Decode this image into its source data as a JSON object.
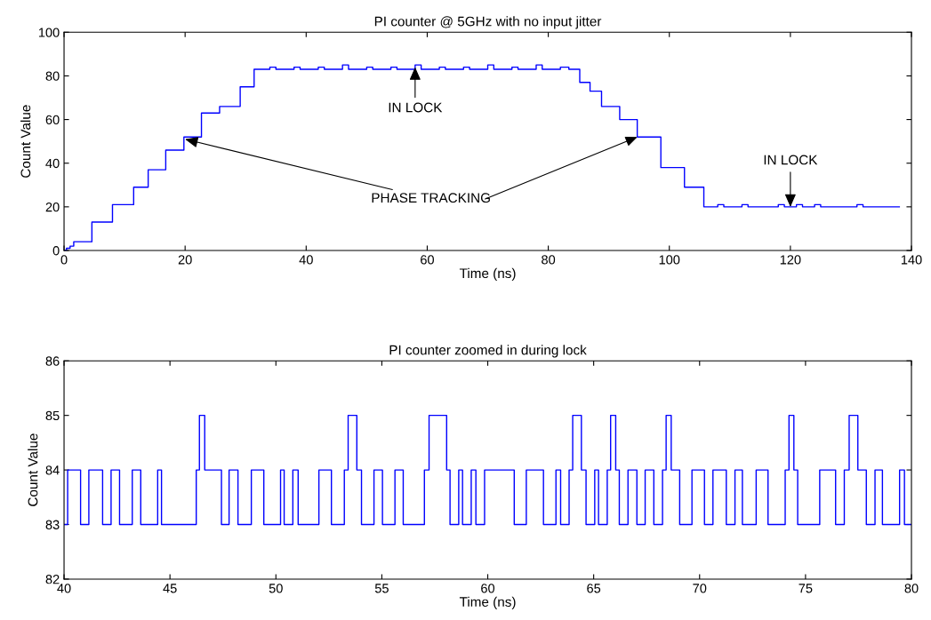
{
  "chart_data": [
    {
      "type": "step",
      "title": "PI counter @ 5GHz with no input jitter",
      "xlabel": "Time (ns)",
      "ylabel": "Count Value",
      "xlim": [
        0,
        140
      ],
      "xticks": [
        0,
        20,
        40,
        60,
        80,
        100,
        120,
        140
      ],
      "ylim": [
        0,
        100
      ],
      "yticks": [
        0,
        20,
        40,
        60,
        80,
        100
      ],
      "grid": false,
      "legend": false,
      "series": [
        {
          "color": "#0000ff",
          "x": [
            0,
            0.4,
            1,
            1.6,
            4.6,
            8,
            11.5,
            13.9,
            16.8,
            19.8,
            22.7,
            25.7,
            29.1,
            31.4,
            34,
            35,
            38,
            39,
            42,
            43,
            46,
            47,
            50,
            51,
            54,
            55,
            58,
            59,
            62,
            63,
            66,
            67,
            70,
            71,
            74,
            75,
            78,
            79,
            82,
            83.4,
            85.2,
            86.9,
            88.8,
            91.8,
            94.7,
            98.6,
            102.5,
            105.7,
            108,
            109,
            112,
            113,
            118,
            119,
            121,
            122,
            124,
            125,
            131,
            132,
            138
          ],
          "values": [
            0,
            1,
            2,
            4,
            13,
            21,
            29,
            37,
            46,
            52,
            63,
            66,
            75,
            83,
            84,
            83,
            84,
            83,
            84,
            83,
            85,
            83,
            84,
            83,
            84,
            83,
            85,
            83,
            84,
            83,
            84,
            83,
            85,
            83,
            84,
            83,
            85,
            83,
            84,
            83,
            77,
            73,
            66,
            60,
            52,
            38,
            29,
            20,
            21,
            20,
            21,
            20,
            21,
            20,
            21,
            20,
            21,
            20,
            21,
            20,
            20
          ]
        }
      ],
      "annotations": [
        {
          "text": "IN LOCK",
          "x": 58,
          "y": 84
        },
        {
          "text": "IN LOCK",
          "x": 120,
          "y": 20
        },
        {
          "text": "PHASE TRACKING",
          "x": 20,
          "y": 51
        }
      ]
    },
    {
      "type": "step",
      "title": "PI counter zoomed in during lock",
      "xlabel": "Time (ns)",
      "ylabel": "Count Value",
      "xlim": [
        40,
        80
      ],
      "xticks": [
        40,
        45,
        50,
        55,
        60,
        65,
        70,
        75,
        80
      ],
      "ylim": [
        82,
        86
      ],
      "yticks": [
        82,
        83,
        84,
        85,
        86
      ],
      "grid": false,
      "legend": false,
      "series": [
        {
          "color": "#0000ff",
          "x": [
            40.0,
            40.17,
            40.78,
            41.17,
            41.82,
            42.22,
            42.62,
            43.22,
            43.62,
            44.42,
            44.6,
            46.24,
            46.39,
            46.64,
            47.43,
            47.79,
            48.21,
            48.84,
            49.43,
            50.22,
            50.39,
            50.8,
            51.05,
            52.03,
            52.62,
            53.23,
            53.41,
            53.82,
            54.04,
            54.63,
            55.03,
            55.62,
            56.01,
            57.01,
            57.23,
            58.06,
            58.22,
            58.63,
            58.81,
            59.22,
            59.44,
            59.85,
            61.25,
            61.82,
            62.63,
            63.22,
            63.44,
            63.84,
            64.01,
            64.42,
            64.64,
            65.05,
            65.23,
            65.64,
            65.8,
            66.04,
            66.21,
            66.62,
            67.04,
            67.43,
            67.84,
            68.25,
            68.42,
            68.66,
            69.06,
            69.64,
            70.23,
            70.63,
            71.26,
            71.67,
            72.02,
            72.67,
            73.23,
            74.04,
            74.22,
            74.45,
            74.63,
            75.67,
            76.42,
            76.83,
            77.06,
            77.47,
            77.87,
            78.28,
            78.63,
            79.44,
            79.67,
            80.0
          ],
          "values": [
            83,
            84,
            83,
            84,
            83,
            84,
            83,
            84,
            83,
            84,
            83,
            84,
            85,
            84,
            83,
            84,
            83,
            84,
            83,
            84,
            83,
            84,
            83,
            84,
            83,
            84,
            85,
            84,
            83,
            84,
            83,
            84,
            83,
            84,
            85,
            84,
            83,
            84,
            83,
            84,
            83,
            84,
            83,
            84,
            83,
            84,
            83,
            84,
            85,
            84,
            83,
            84,
            83,
            84,
            85,
            84,
            83,
            84,
            83,
            84,
            83,
            84,
            85,
            84,
            83,
            84,
            83,
            84,
            83,
            84,
            83,
            84,
            83,
            84,
            85,
            84,
            83,
            84,
            83,
            84,
            85,
            84,
            83,
            84,
            83,
            84,
            83,
            83
          ]
        }
      ]
    }
  ]
}
